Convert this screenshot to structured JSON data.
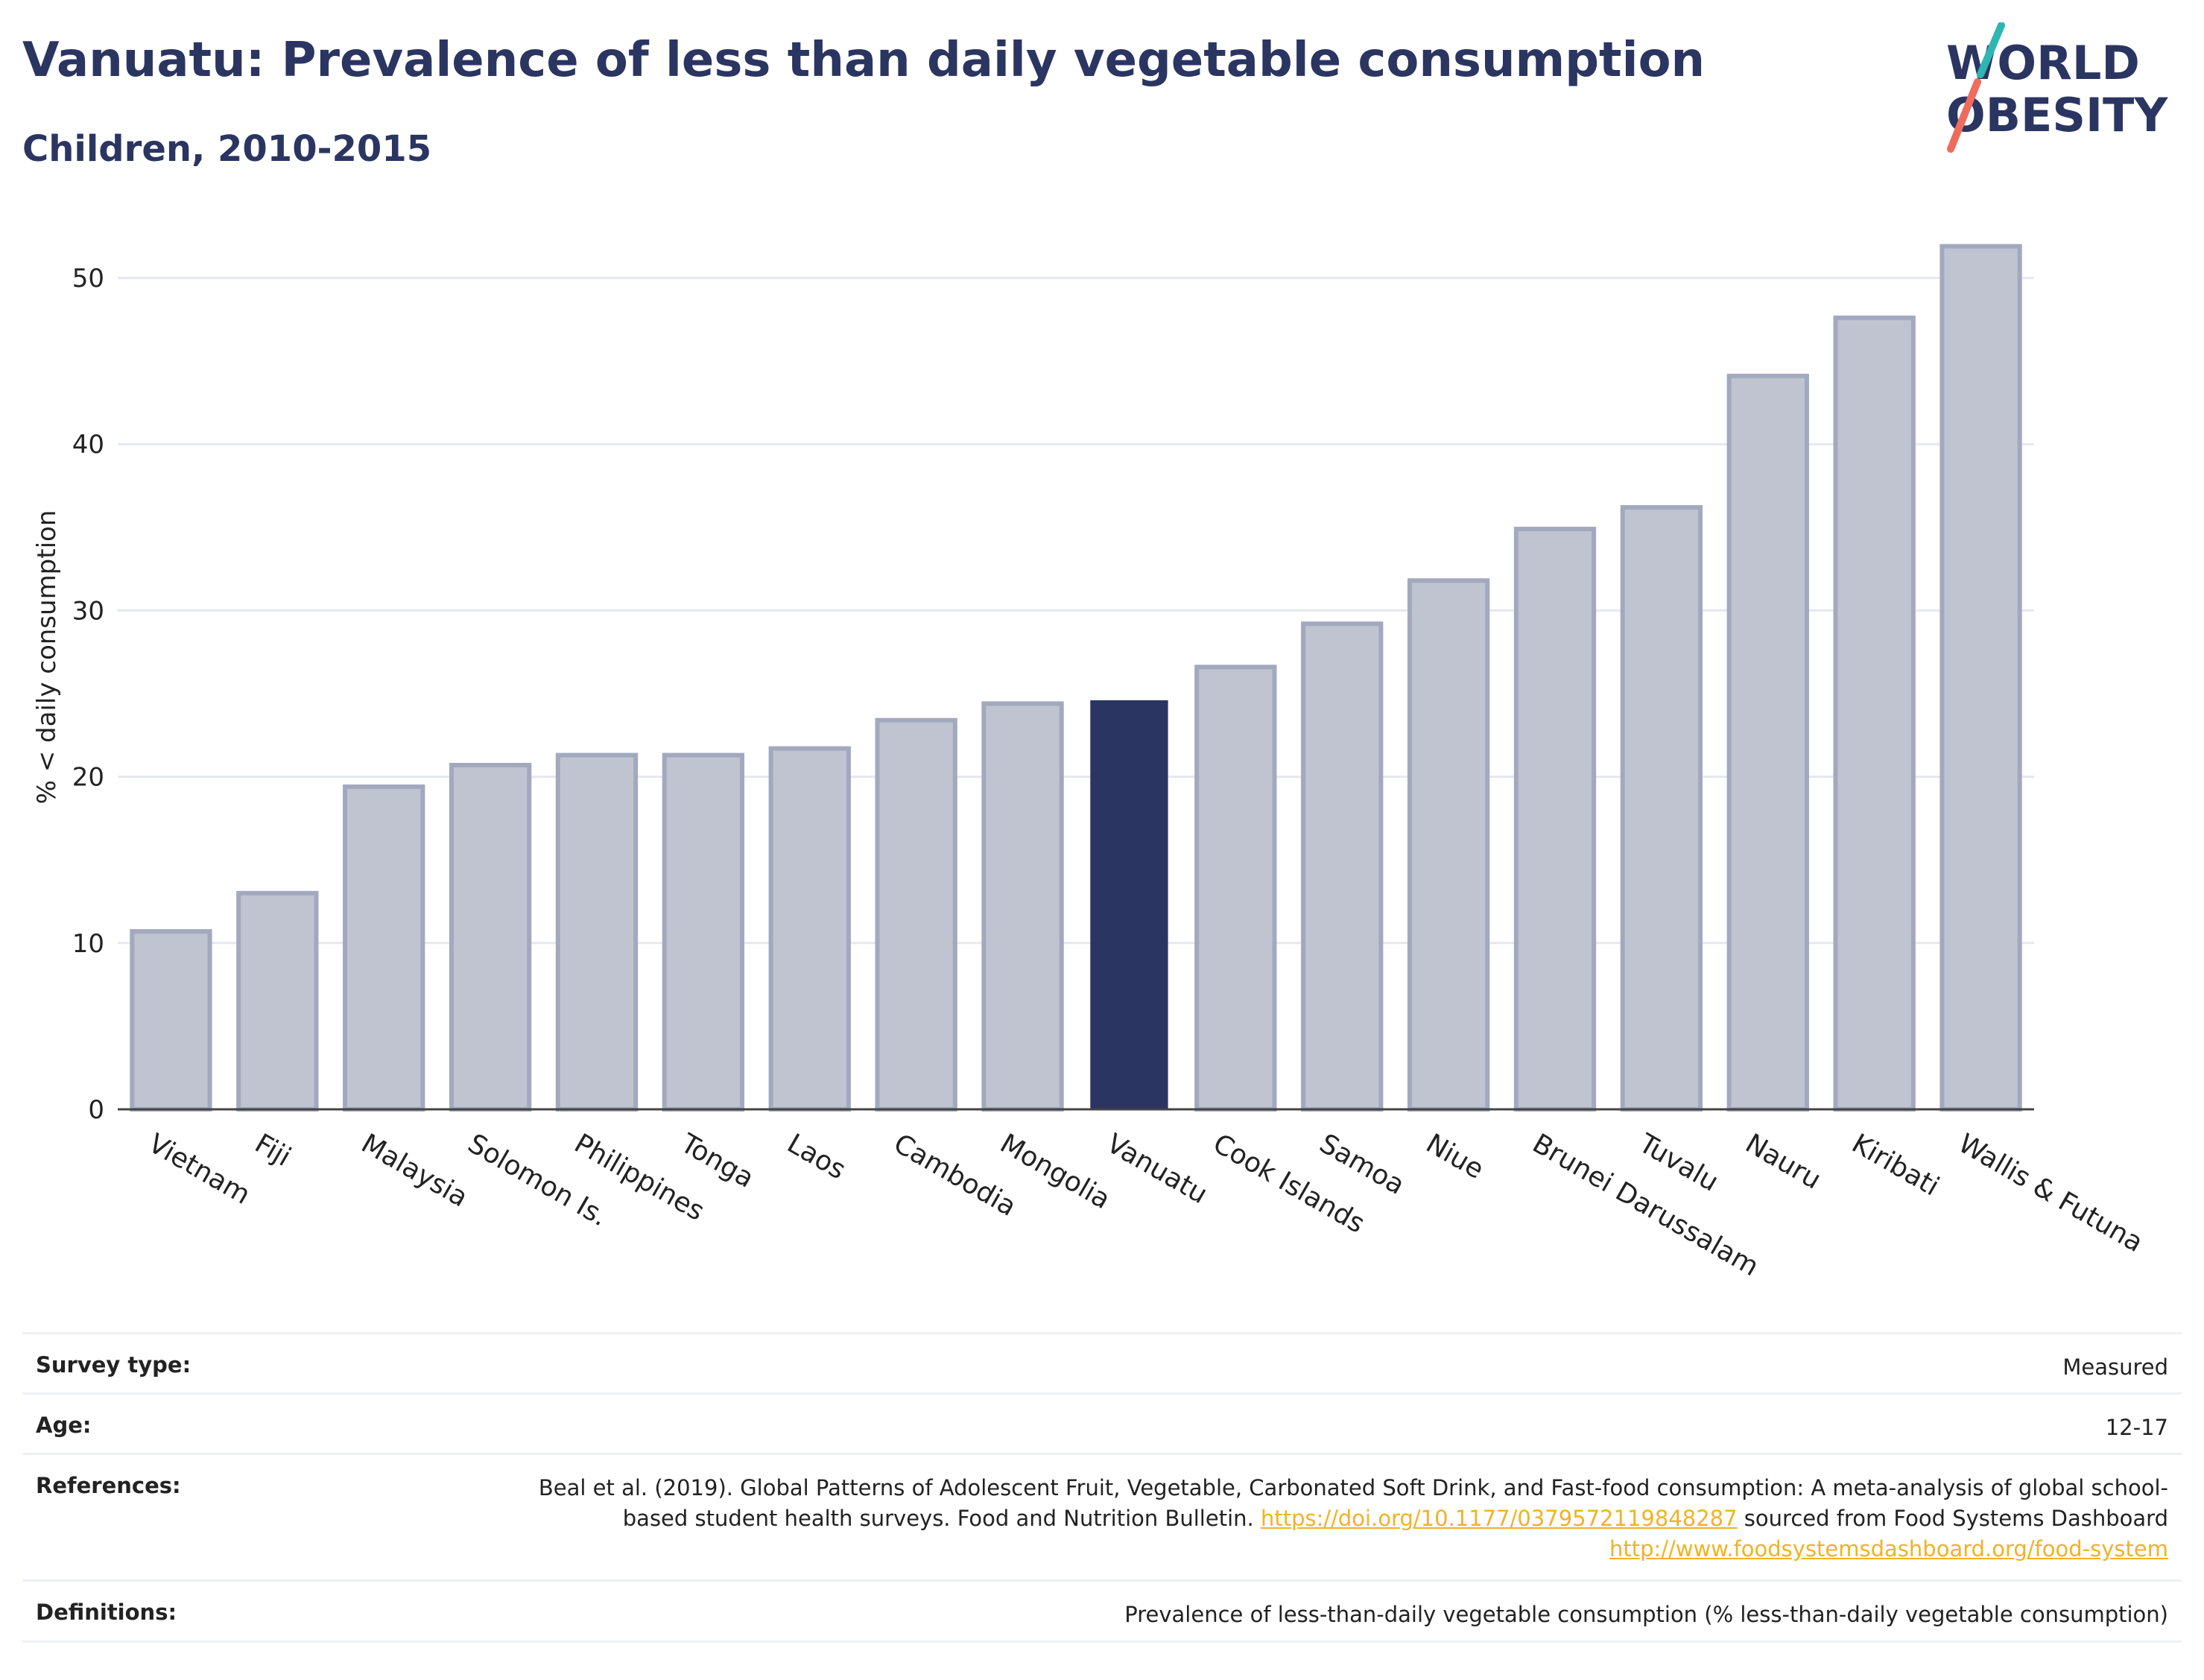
{
  "header": {
    "title": "Vanuatu: Prevalence of less than daily vegetable consumption",
    "subtitle": "Children, 2010-2015"
  },
  "logo": {
    "line1": "WORLD",
    "line2": "OBESITY"
  },
  "colors": {
    "brand": "#2b3561",
    "highlight_bar": "#2b3561",
    "bar": "#c0c4d0",
    "bar_edge": "#a2a9bf",
    "link": "#f0b323",
    "logo_teal": "#2fb6b2",
    "logo_coral": "#ef6b5e"
  },
  "chart_data": {
    "type": "bar",
    "title": "Vanuatu: Prevalence of less than daily vegetable consumption",
    "subtitle": "Children, 2010-2015",
    "ylabel": "% < daily consumption",
    "xlabel": "",
    "ylim": [
      0,
      53.5
    ],
    "yticks": [
      0,
      10,
      20,
      30,
      40,
      50
    ],
    "grid": true,
    "highlight": "Vanuatu",
    "categories": [
      "Vietnam",
      "Fiji",
      "Malaysia",
      "Solomon Is.",
      "Philippines",
      "Tonga",
      "Laos",
      "Cambodia",
      "Mongolia",
      "Vanuatu",
      "Cook Islands",
      "Samoa",
      "Niue",
      "Brunei Darussalam",
      "Tuvalu",
      "Nauru",
      "Kiribati",
      "Wallis & Futuna"
    ],
    "values": [
      10.7,
      13.0,
      19.4,
      20.7,
      21.3,
      21.3,
      21.7,
      23.4,
      24.4,
      24.6,
      26.6,
      29.2,
      31.8,
      34.9,
      36.2,
      44.1,
      47.6,
      51.9
    ]
  },
  "info_table": {
    "survey_type_label": "Survey type:",
    "survey_type_value": "Measured",
    "age_label": "Age:",
    "age_value": "12-17",
    "references_label": "References:",
    "references_text_1": "Beal et al. (2019). Global Patterns of Adolescent Fruit, Vegetable, Carbonated Soft Drink, and Fast-food consumption: A meta-analysis of global school-based student health surveys. Food and Nutrition Bulletin. ",
    "references_link_1": "https://doi.org/10.1177/0379572119848287",
    "references_text_2": " sourced from Food Systems Dashboard ",
    "references_link_2": "http://www.foodsystemsdashboard.org/food-system",
    "definitions_label": "Definitions:",
    "definitions_value": "Prevalence of less-than-daily vegetable consumption (% less-than-daily vegetable consumption)"
  }
}
